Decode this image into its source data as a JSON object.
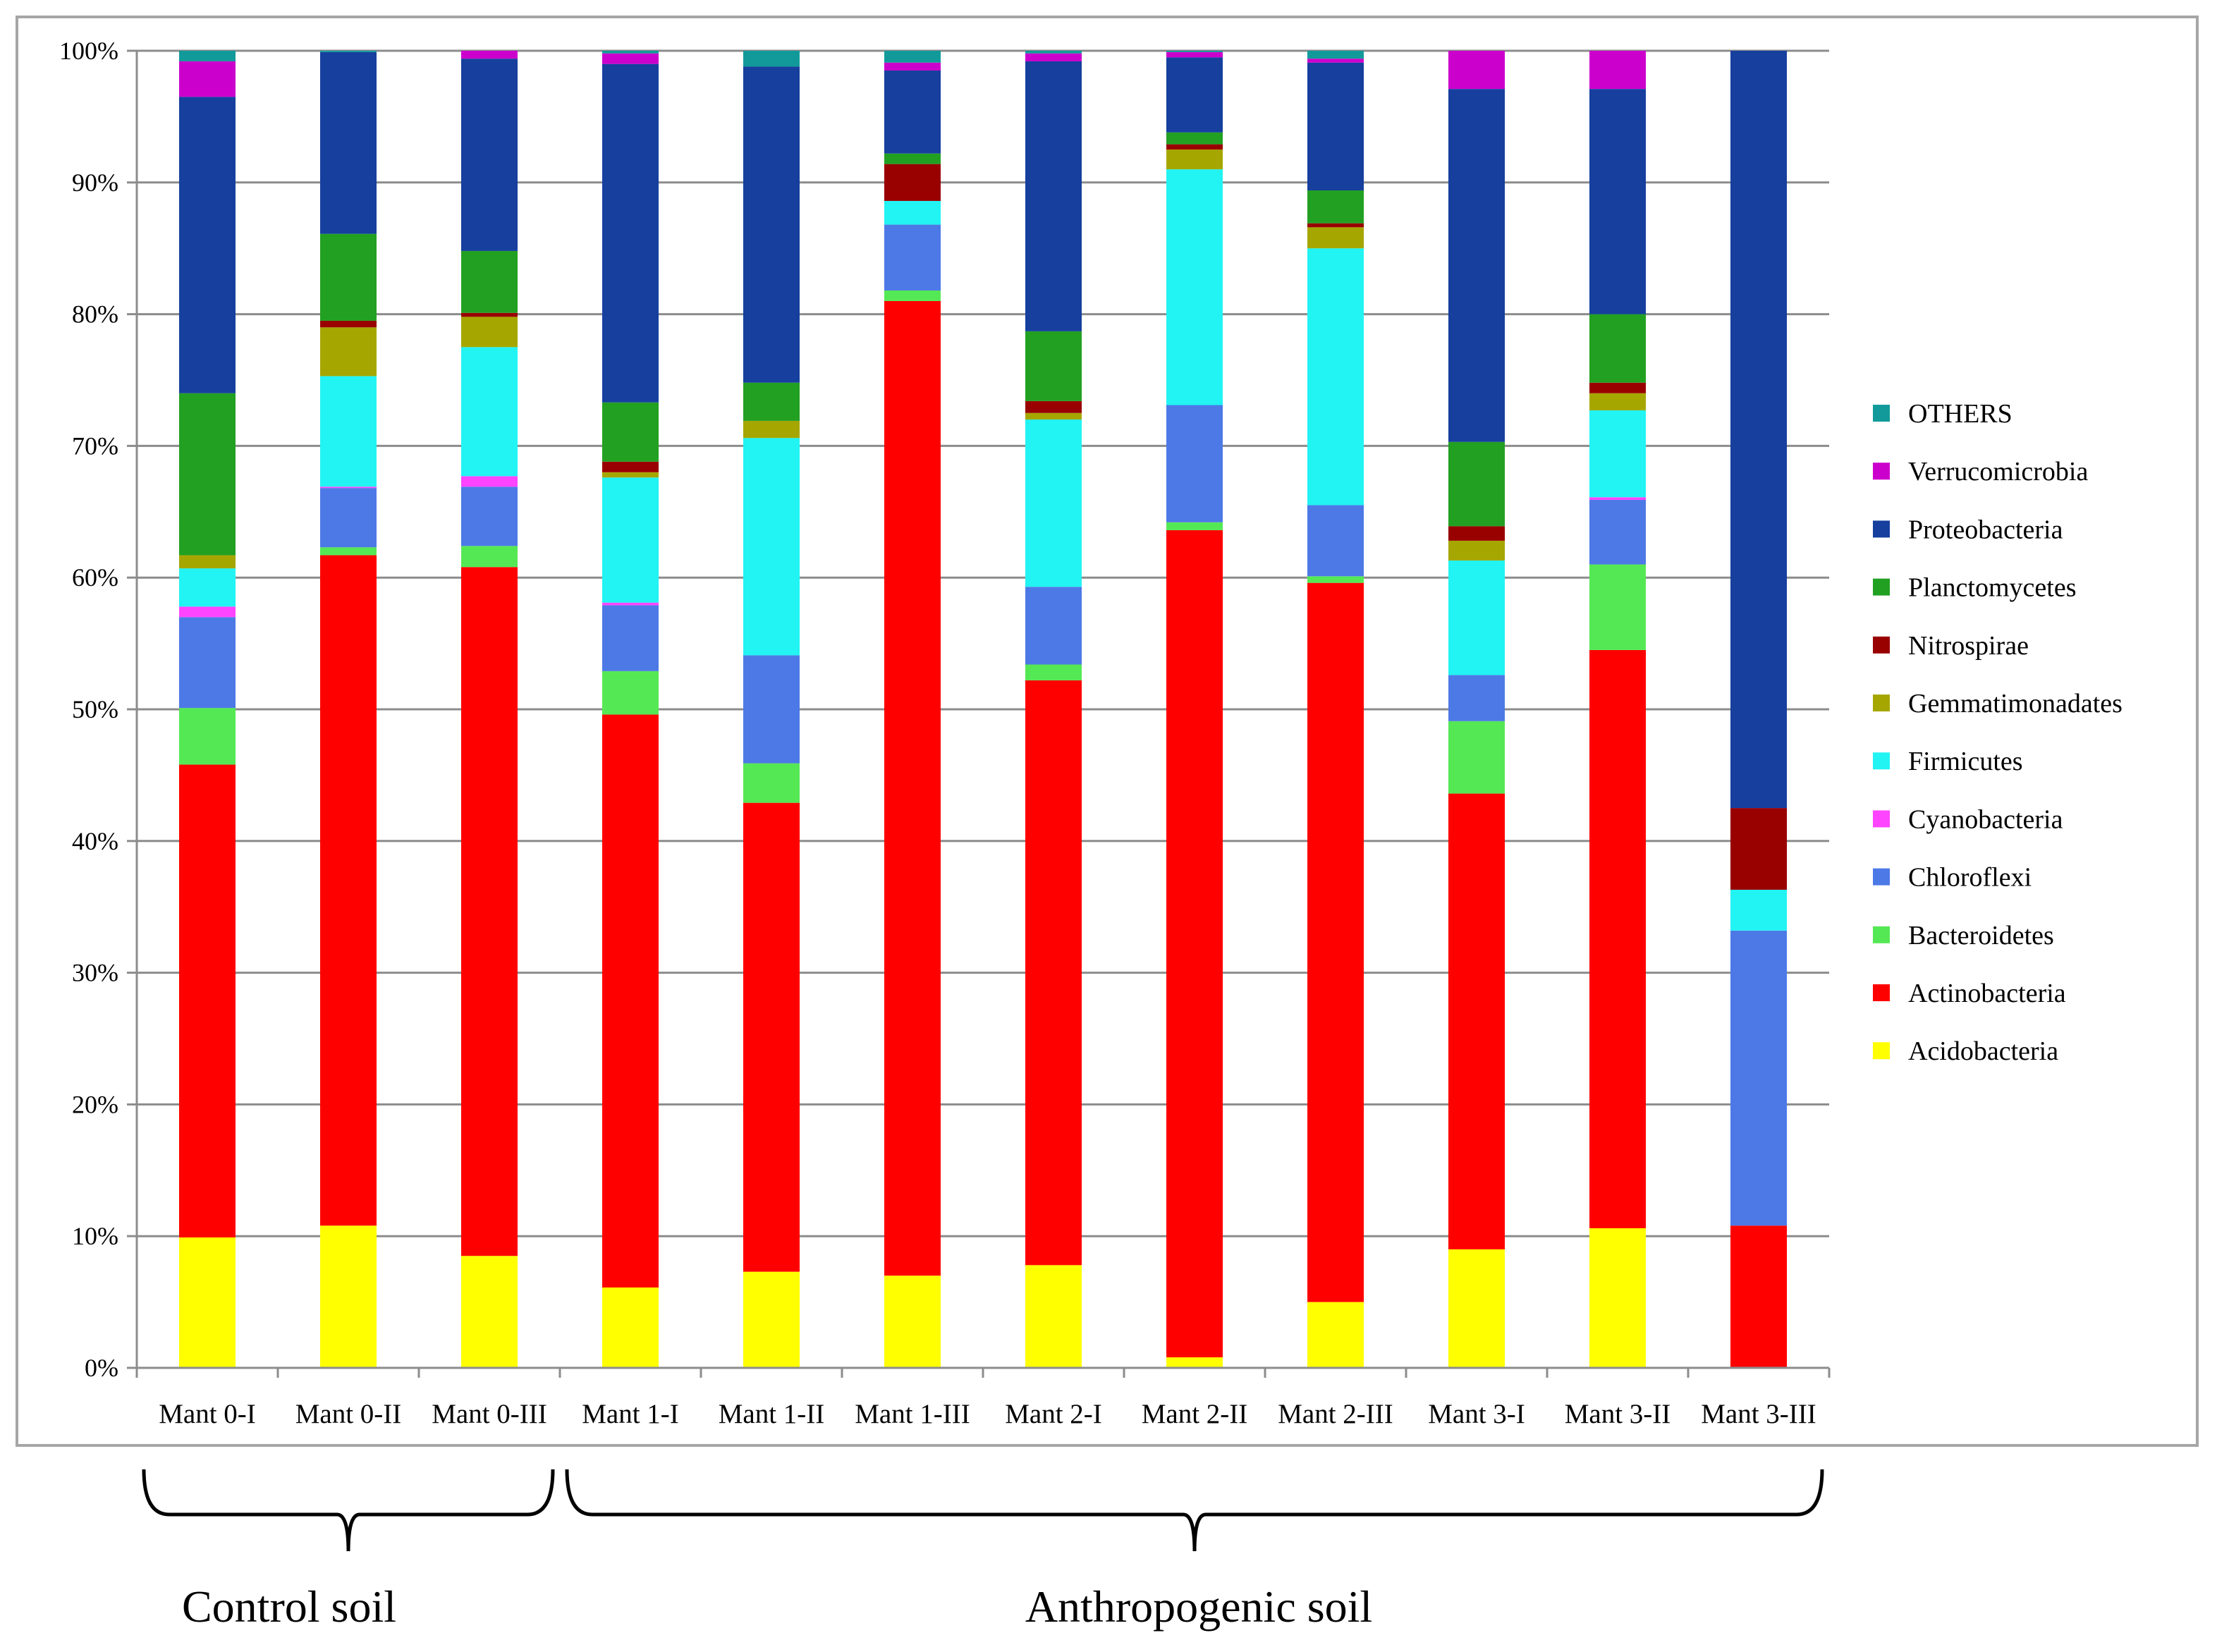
{
  "chart_data": {
    "type": "bar",
    "stacked": true,
    "normalized": true,
    "categories": [
      "Mant 0-I",
      "Mant 0-II",
      "Mant 0-III",
      "Mant 1-I",
      "Mant 1-II",
      "Mant 1-III",
      "Mant 2-I",
      "Mant 2-II",
      "Mant 2-III",
      "Mant 3-I",
      "Mant 3-II",
      "Mant 3-III"
    ],
    "yticks": [
      "0%",
      "10%",
      "20%",
      "30%",
      "40%",
      "50%",
      "60%",
      "70%",
      "80%",
      "90%",
      "100%"
    ],
    "ylim": [
      0,
      100
    ],
    "grid": true,
    "legend_position": "right",
    "series": [
      {
        "name": "Acidobacteria",
        "color": "#ffff00",
        "values": [
          9.9,
          10.8,
          8.5,
          6.1,
          7.3,
          7.0,
          7.8,
          0.8,
          5.0,
          9.0,
          10.6,
          0.0
        ]
      },
      {
        "name": "Actinobacteria",
        "color": "#ff0000",
        "values": [
          35.9,
          50.9,
          52.3,
          43.5,
          35.6,
          74.0,
          44.4,
          62.8,
          54.6,
          34.6,
          43.9,
          10.8
        ]
      },
      {
        "name": "Bacteroidetes",
        "color": "#55e855",
        "values": [
          4.3,
          0.6,
          1.6,
          3.3,
          3.0,
          0.8,
          1.2,
          0.6,
          0.5,
          5.5,
          6.5,
          0.0
        ]
      },
      {
        "name": "Chloroflexi",
        "color": "#4d79e6",
        "values": [
          6.9,
          4.5,
          4.5,
          5.0,
          8.2,
          5.0,
          5.9,
          8.9,
          5.4,
          3.5,
          4.9,
          22.4
        ]
      },
      {
        "name": "Cyanobacteria",
        "color": "#ff44ff",
        "values": [
          0.8,
          0.1,
          0.8,
          0.2,
          0.0,
          0.0,
          0.0,
          0.0,
          0.0,
          0.0,
          0.2,
          0.0
        ]
      },
      {
        "name": "Firmicutes",
        "color": "#22f3f3",
        "values": [
          2.9,
          8.4,
          9.8,
          9.5,
          16.5,
          1.8,
          12.7,
          17.9,
          19.5,
          8.7,
          6.6,
          3.1
        ]
      },
      {
        "name": "Gemmatimonadates",
        "color": "#a6a600",
        "values": [
          1.0,
          3.7,
          2.3,
          0.4,
          1.3,
          0.0,
          0.5,
          1.5,
          1.6,
          1.5,
          1.3,
          0.0
        ]
      },
      {
        "name": "Nitrospirae",
        "color": "#990000",
        "values": [
          0.0,
          0.5,
          0.3,
          0.8,
          0.0,
          2.8,
          0.9,
          0.4,
          0.3,
          1.1,
          0.8,
          6.2
        ]
      },
      {
        "name": "Planctomycetes",
        "color": "#22a022",
        "values": [
          12.3,
          6.6,
          4.7,
          4.5,
          2.9,
          0.8,
          5.3,
          0.9,
          2.5,
          6.4,
          5.2,
          0.0
        ]
      },
      {
        "name": "Proteobacteria",
        "color": "#163f9e",
        "values": [
          22.5,
          13.8,
          14.6,
          25.7,
          24.0,
          6.3,
          20.5,
          5.7,
          9.7,
          26.8,
          17.1,
          57.5
        ]
      },
      {
        "name": "Verrucomicrobia",
        "color": "#cc00cc",
        "values": [
          2.7,
          0.0,
          0.6,
          0.8,
          0.0,
          0.6,
          0.6,
          0.4,
          0.3,
          2.9,
          2.9,
          0.0
        ]
      },
      {
        "name": "OTHERS",
        "color": "#129a9a",
        "values": [
          0.8,
          0.1,
          0.0,
          0.2,
          1.2,
          0.9,
          0.2,
          0.1,
          0.6,
          0.0,
          0.0,
          0.0
        ]
      }
    ],
    "legend_order": [
      "OTHERS",
      "Verrucomicrobia",
      "Proteobacteria",
      "Planctomycetes",
      "Nitrospirae",
      "Gemmatimonadates",
      "Firmicutes",
      "Cyanobacteria",
      "Chloroflexi",
      "Bacteroidetes",
      "Actinobacteria",
      "Acidobacteria"
    ],
    "groups": [
      {
        "label": "Control soil",
        "from": 0,
        "to": 2
      },
      {
        "label": "Anthropogenic soil",
        "from": 3,
        "to": 11
      }
    ]
  }
}
